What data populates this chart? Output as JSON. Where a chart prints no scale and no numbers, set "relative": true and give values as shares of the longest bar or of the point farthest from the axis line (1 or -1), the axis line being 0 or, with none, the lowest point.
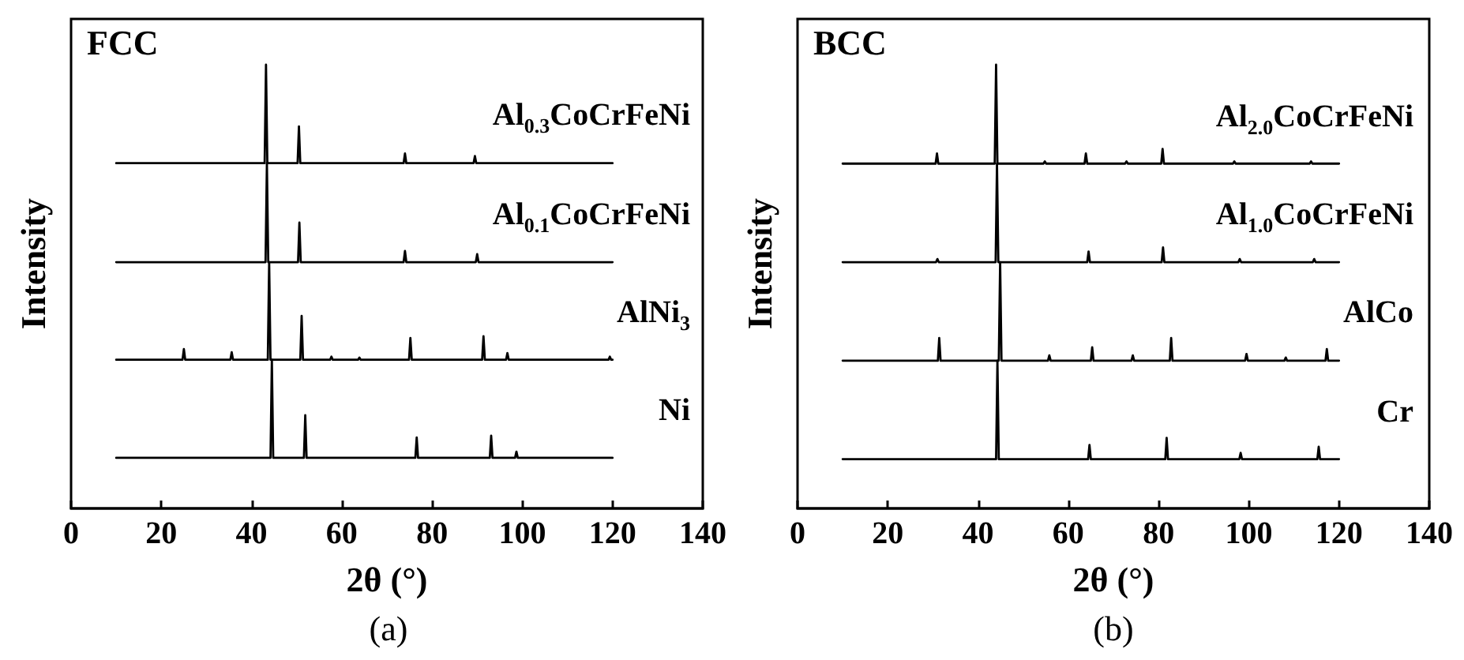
{
  "chart_data": [
    {
      "type": "line",
      "relative": true,
      "xlabel": "2θ (°)",
      "ylabel": "Intensity",
      "annotations": [
        "FCC",
        "(a)"
      ],
      "xlim": [
        0,
        140
      ],
      "xticks": [
        0,
        20,
        40,
        60,
        80,
        100,
        120,
        140
      ],
      "grid": false,
      "legend": false,
      "marker": "none",
      "line_style": "solid",
      "series": [
        {
          "name": "Al$_{0.3}$CoCrFeNi",
          "color": "#000000",
          "x": [
            10,
            42.9,
            43.2,
            43.5,
            50.2,
            50.5,
            50.8,
            73.7,
            74,
            74.3,
            89.2,
            89.5,
            89.8,
            120
          ],
          "values": [
            0.778,
            0.778,
            1.0,
            0.778,
            0.778,
            0.861,
            0.778,
            0.778,
            0.8,
            0.778,
            0.778,
            0.794,
            0.778,
            0.778
          ]
        },
        {
          "name": "Al$_{0.1}$CoCrFeNi",
          "color": "#000000",
          "x": [
            10,
            43.1,
            43.4,
            43.7,
            50.3,
            50.6,
            50.9,
            73.7,
            74,
            74.3,
            89.7,
            90,
            90.3,
            120
          ],
          "values": [
            0.555,
            0.555,
            0.778,
            0.555,
            0.555,
            0.644,
            0.555,
            0.555,
            0.58,
            0.555,
            0.555,
            0.573,
            0.555,
            0.555
          ]
        },
        {
          "name": "AlNi$_{3}$",
          "color": "#000000",
          "x": [
            10,
            24.7,
            25,
            25.3,
            35.3,
            35.6,
            35.9,
            43.6,
            43.9,
            44.2,
            50.8,
            51.1,
            51.4,
            57.4,
            57.7,
            58,
            63.6,
            63.9,
            64.2,
            74.9,
            75.2,
            75.5,
            91.1,
            91.4,
            91.7,
            96.4,
            96.7,
            97,
            119.1,
            119.4,
            119.7,
            120
          ],
          "values": [
            0.335,
            0.335,
            0.359,
            0.335,
            0.335,
            0.352,
            0.335,
            0.335,
            0.555,
            0.335,
            0.335,
            0.434,
            0.335,
            0.335,
            0.342,
            0.335,
            0.335,
            0.34,
            0.335,
            0.335,
            0.384,
            0.335,
            0.335,
            0.388,
            0.335,
            0.335,
            0.35,
            0.335,
            0.335,
            0.342,
            0.335,
            0.335
          ]
        },
        {
          "name": "Ni",
          "color": "#000000",
          "x": [
            10,
            44.2,
            44.5,
            44.8,
            51.6,
            51.9,
            52.2,
            76.3,
            76.6,
            76.9,
            92.8,
            93.1,
            93.4,
            98.4,
            98.7,
            99,
            120
          ],
          "values": [
            0.114,
            0.114,
            0.335,
            0.114,
            0.114,
            0.21,
            0.114,
            0.114,
            0.16,
            0.114,
            0.114,
            0.164,
            0.114,
            0.114,
            0.128,
            0.114,
            0.114
          ]
        }
      ]
    },
    {
      "type": "line",
      "relative": true,
      "xlabel": "2θ (°)",
      "ylabel": "Intensity",
      "annotations": [
        "BCC",
        "(b)"
      ],
      "xlim": [
        0,
        140
      ],
      "xticks": [
        0,
        20,
        40,
        60,
        80,
        100,
        120,
        140
      ],
      "grid": false,
      "legend": false,
      "marker": "none",
      "line_style": "solid",
      "series": [
        {
          "name": "Al$_{2.0}$CoCrFeNi",
          "color": "#000000",
          "x": [
            10,
            30.6,
            30.9,
            31.2,
            43.7,
            44,
            44.3,
            54.5,
            54.8,
            55.1,
            63.6,
            63.9,
            64.2,
            72.6,
            72.9,
            73.2,
            80.6,
            80.9,
            81.2,
            96.5,
            96.8,
            97.1,
            113.5,
            113.8,
            114.1,
            120
          ],
          "values": [
            0.777,
            0.777,
            0.8,
            0.777,
            0.777,
            1.0,
            0.777,
            0.777,
            0.782,
            0.777,
            0.777,
            0.8,
            0.777,
            0.777,
            0.782,
            0.777,
            0.777,
            0.81,
            0.777,
            0.777,
            0.782,
            0.777,
            0.777,
            0.782,
            0.777,
            0.777
          ]
        },
        {
          "name": "Al$_{1.0}$CoCrFeNi",
          "color": "#000000",
          "x": [
            10,
            30.7,
            31,
            31.3,
            43.9,
            44.2,
            44.5,
            64.2,
            64.5,
            64.8,
            80.7,
            81,
            81.3,
            97.7,
            98,
            98.3,
            114.2,
            114.5,
            114.8,
            120
          ],
          "values": [
            0.555,
            0.555,
            0.562,
            0.555,
            0.555,
            0.777,
            0.555,
            0.555,
            0.579,
            0.555,
            0.555,
            0.588,
            0.555,
            0.555,
            0.562,
            0.555,
            0.555,
            0.562,
            0.555,
            0.555
          ]
        },
        {
          "name": "AlCo",
          "color": "#000000",
          "x": [
            10,
            31.1,
            31.4,
            31.7,
            44.6,
            44.9,
            45.2,
            55.5,
            55.8,
            56.1,
            65,
            65.3,
            65.6,
            74,
            74.3,
            74.6,
            82.5,
            82.8,
            83.1,
            99.2,
            99.5,
            99.8,
            107.9,
            108.2,
            108.5,
            117,
            117.3,
            117.6,
            120
          ],
          "values": [
            0.333,
            0.333,
            0.384,
            0.333,
            0.333,
            0.555,
            0.333,
            0.333,
            0.345,
            0.333,
            0.333,
            0.363,
            0.333,
            0.333,
            0.345,
            0.333,
            0.333,
            0.384,
            0.333,
            0.333,
            0.348,
            0.333,
            0.333,
            0.34,
            0.333,
            0.333,
            0.359,
            0.333,
            0.333
          ]
        },
        {
          "name": "Cr",
          "color": "#000000",
          "x": [
            10,
            44,
            44.3,
            44.6,
            64.4,
            64.7,
            65,
            81.5,
            81.8,
            82.1,
            97.9,
            98.2,
            98.5,
            115.2,
            115.5,
            115.8,
            120
          ],
          "values": [
            0.111,
            0.111,
            0.333,
            0.111,
            0.111,
            0.143,
            0.111,
            0.111,
            0.159,
            0.111,
            0.111,
            0.125,
            0.111,
            0.111,
            0.139,
            0.111,
            0.111
          ]
        }
      ]
    }
  ]
}
